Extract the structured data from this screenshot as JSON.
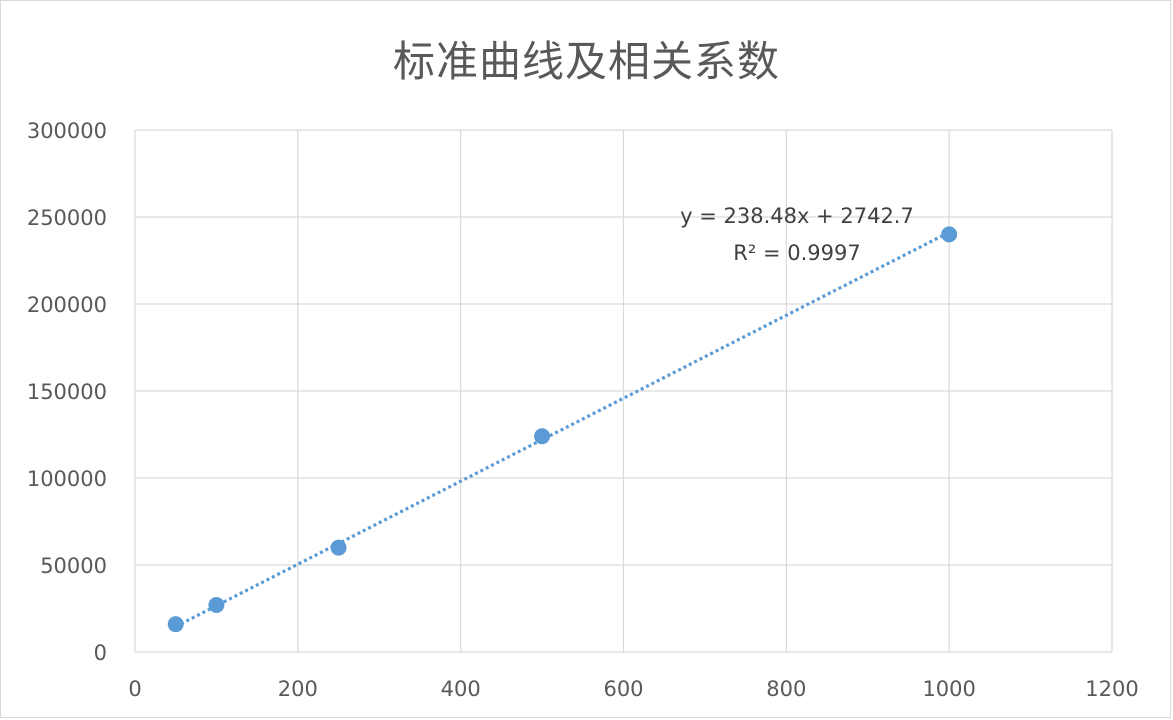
{
  "chart_data": {
    "type": "scatter",
    "title": "标准曲线及相关系数",
    "xlabel": "",
    "ylabel": "",
    "xlim": [
      0,
      1200
    ],
    "ylim": [
      0,
      300000
    ],
    "x_ticks": [
      "0",
      "200",
      "400",
      "600",
      "800",
      "1000",
      "1200"
    ],
    "y_ticks": [
      "0",
      "50000",
      "100000",
      "150000",
      "200000",
      "250000",
      "300000"
    ],
    "grid": true,
    "series": [
      {
        "x": [
          50,
          100,
          250,
          500,
          1000
        ],
        "y": [
          16000,
          27000,
          60000,
          124000,
          240000
        ],
        "color": "#5b9bd5"
      }
    ],
    "trendline": {
      "kind": "linear",
      "slope": 238.48,
      "intercept": 2742.7,
      "x_range": [
        50,
        1000
      ],
      "style": "dotted",
      "color": "#5b9bd5",
      "equation": "y = 238.48x + 2742.7",
      "r_squared": "R² = 0.9997"
    }
  }
}
